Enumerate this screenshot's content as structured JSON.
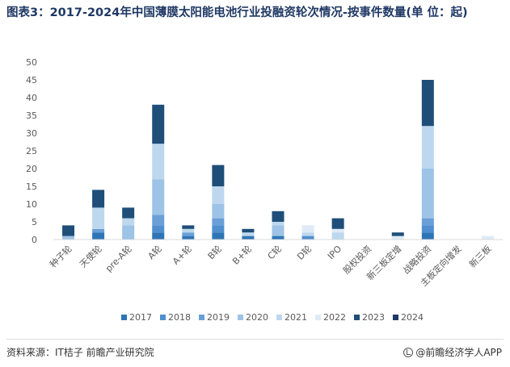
{
  "header": {
    "title": "图表3：2017-2024年中国薄膜太阳能电池行业投融资轮次情况-按事件数量(单 位：起)"
  },
  "footer": {
    "source": "资料来源：IT桔子 前瞻产业研究院",
    "brand": "@前瞻经济学人APP"
  },
  "chart_data": {
    "type": "bar",
    "stacked": true,
    "categories": [
      "种子轮",
      "天使轮",
      "pre-A轮",
      "A轮",
      "A+轮",
      "B轮",
      "B+轮",
      "C轮",
      "D轮",
      "IPO",
      "股权投资",
      "新三板定增",
      "战略投资",
      "主板定向增发",
      "新三板"
    ],
    "yticks": [
      0,
      5,
      10,
      15,
      20,
      25,
      30,
      35,
      40,
      45,
      50
    ],
    "ylim": [
      0,
      50
    ],
    "series": [
      {
        "name": "2017",
        "color": "#2e75b6",
        "values": [
          0,
          2,
          0,
          2,
          1,
          2,
          1,
          1,
          0,
          0,
          0,
          0,
          2,
          0,
          0
        ]
      },
      {
        "name": "2018",
        "color": "#4f8fcf",
        "values": [
          0,
          0,
          0,
          2,
          0,
          2,
          0,
          0,
          1,
          0,
          0,
          0,
          2,
          0,
          0
        ]
      },
      {
        "name": "2019",
        "color": "#6a9fd8",
        "values": [
          0,
          1,
          0,
          3,
          1,
          2,
          0,
          0,
          0,
          0,
          0,
          0,
          2,
          0,
          0
        ]
      },
      {
        "name": "2020",
        "color": "#9dc3e6",
        "values": [
          1,
          0,
          4,
          10,
          0,
          4,
          0,
          3,
          0,
          0,
          0,
          0,
          14,
          0,
          0
        ]
      },
      {
        "name": "2021",
        "color": "#bdd7ee",
        "values": [
          0,
          6,
          2,
          10,
          1,
          5,
          1,
          1,
          1,
          2,
          0,
          0,
          12,
          0,
          0
        ]
      },
      {
        "name": "2022",
        "color": "#deebf7",
        "values": [
          0,
          0,
          0,
          0,
          0,
          0,
          0,
          0,
          2,
          1,
          0,
          1,
          0,
          0,
          1
        ]
      },
      {
        "name": "2023",
        "color": "#1f4e79",
        "values": [
          3,
          5,
          3,
          11,
          1,
          6,
          1,
          3,
          0,
          3,
          0,
          1,
          13,
          0,
          0
        ]
      },
      {
        "name": "2024",
        "color": "#203864",
        "values": [
          0,
          0,
          0,
          0,
          0,
          0,
          0,
          0,
          0,
          0,
          0,
          0,
          0,
          0,
          0
        ]
      }
    ],
    "legend_position": "bottom",
    "grid": false
  }
}
